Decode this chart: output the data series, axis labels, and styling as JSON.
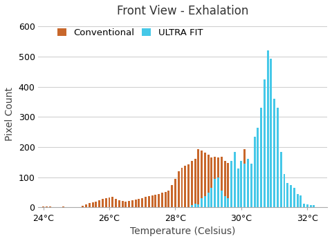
{
  "title": "Front View - Exhalation",
  "xlabel": "Temperature (Celsius)",
  "ylabel": "Pixel Count",
  "xlim": [
    23.85,
    32.6
  ],
  "ylim": [
    0,
    620
  ],
  "yticks": [
    0,
    100,
    200,
    300,
    400,
    500,
    600
  ],
  "xticks": [
    24,
    26,
    28,
    30,
    32
  ],
  "xtick_labels": [
    "24°C",
    "26°C",
    "28°C",
    "30°C",
    "32°C"
  ],
  "conv_color": "#C8672B",
  "ultra_color": "#45C8E8",
  "legend_labels": [
    "Conventional",
    "ULTRA FIT"
  ],
  "bar_width": 0.062,
  "conv_data": [
    [
      24.0,
      4
    ],
    [
      24.1,
      3
    ],
    [
      24.2,
      3
    ],
    [
      24.3,
      2
    ],
    [
      24.4,
      2
    ],
    [
      24.5,
      2
    ],
    [
      24.6,
      3
    ],
    [
      24.7,
      2
    ],
    [
      24.8,
      2
    ],
    [
      24.9,
      2
    ],
    [
      25.0,
      2
    ],
    [
      25.1,
      2
    ],
    [
      25.2,
      5
    ],
    [
      25.3,
      10
    ],
    [
      25.4,
      15
    ],
    [
      25.5,
      18
    ],
    [
      25.6,
      20
    ],
    [
      25.7,
      25
    ],
    [
      25.8,
      28
    ],
    [
      25.9,
      30
    ],
    [
      26.0,
      32
    ],
    [
      26.1,
      35
    ],
    [
      26.2,
      28
    ],
    [
      26.3,
      25
    ],
    [
      26.4,
      22
    ],
    [
      26.5,
      20
    ],
    [
      26.6,
      22
    ],
    [
      26.7,
      25
    ],
    [
      26.8,
      27
    ],
    [
      26.9,
      28
    ],
    [
      27.0,
      30
    ],
    [
      27.1,
      35
    ],
    [
      27.2,
      38
    ],
    [
      27.3,
      40
    ],
    [
      27.4,
      42
    ],
    [
      27.5,
      45
    ],
    [
      27.6,
      48
    ],
    [
      27.7,
      52
    ],
    [
      27.8,
      55
    ],
    [
      27.9,
      75
    ],
    [
      28.0,
      95
    ],
    [
      28.1,
      120
    ],
    [
      28.2,
      132
    ],
    [
      28.3,
      138
    ],
    [
      28.4,
      142
    ],
    [
      28.5,
      155
    ],
    [
      28.6,
      162
    ],
    [
      28.7,
      192
    ],
    [
      28.8,
      188
    ],
    [
      28.9,
      182
    ],
    [
      29.0,
      175
    ],
    [
      29.1,
      165
    ],
    [
      29.2,
      167
    ],
    [
      29.3,
      165
    ],
    [
      29.4,
      168
    ],
    [
      29.5,
      155
    ],
    [
      29.6,
      148
    ],
    [
      29.7,
      145
    ],
    [
      29.8,
      115
    ],
    [
      29.9,
      110
    ],
    [
      30.0,
      128
    ],
    [
      30.1,
      192
    ],
    [
      30.2,
      145
    ],
    [
      30.3,
      140
    ],
    [
      30.4,
      55
    ],
    [
      30.5,
      12
    ],
    [
      30.6,
      8
    ],
    [
      30.7,
      5
    ],
    [
      30.8,
      3
    ],
    [
      30.9,
      2
    ],
    [
      31.0,
      2
    ],
    [
      31.1,
      1
    ]
  ],
  "ultra_data": [
    [
      28.5,
      8
    ],
    [
      28.6,
      12
    ],
    [
      28.7,
      10
    ],
    [
      28.8,
      30
    ],
    [
      28.9,
      38
    ],
    [
      29.0,
      50
    ],
    [
      29.1,
      65
    ],
    [
      29.2,
      95
    ],
    [
      29.3,
      100
    ],
    [
      29.4,
      55
    ],
    [
      29.5,
      38
    ],
    [
      29.6,
      30
    ],
    [
      29.7,
      155
    ],
    [
      29.8,
      185
    ],
    [
      29.9,
      130
    ],
    [
      30.0,
      155
    ],
    [
      30.1,
      145
    ],
    [
      30.2,
      160
    ],
    [
      30.3,
      145
    ],
    [
      30.4,
      235
    ],
    [
      30.5,
      265
    ],
    [
      30.6,
      330
    ],
    [
      30.7,
      425
    ],
    [
      30.8,
      520
    ],
    [
      30.9,
      493
    ],
    [
      31.0,
      360
    ],
    [
      31.1,
      330
    ],
    [
      31.2,
      185
    ],
    [
      31.3,
      110
    ],
    [
      31.4,
      80
    ],
    [
      31.5,
      75
    ],
    [
      31.6,
      65
    ],
    [
      31.7,
      45
    ],
    [
      31.8,
      40
    ],
    [
      31.9,
      12
    ],
    [
      32.0,
      10
    ],
    [
      32.1,
      8
    ],
    [
      32.2,
      7
    ]
  ],
  "figsize": [
    4.8,
    3.49
  ],
  "dpi": 100,
  "bg_color": "#ffffff",
  "grid_color": "#d0d0d0",
  "spine_color": "#aaaaaa",
  "title_fontsize": 12,
  "label_fontsize": 10,
  "tick_fontsize": 9,
  "legend_fontsize": 9.5
}
